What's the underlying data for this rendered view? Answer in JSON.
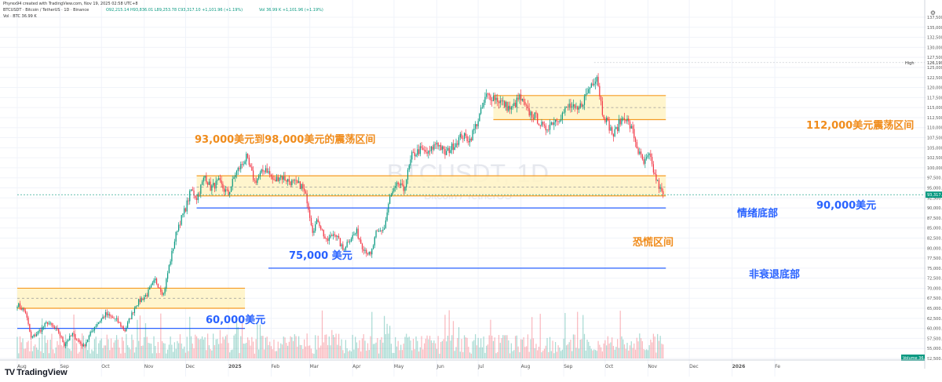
{
  "header": {
    "created_by": "Phyrex94 created with TradingView.com, Nov 19, 2025 02:58 UTC+8",
    "symbol_line": "BTCUSDT · Bitcoin / TetherUS · 1D · Binance",
    "ohlc_line": "O92,215.14 H93,836.01 L89,253.78 C93,317.10 +1,101.96 (+1.19%)",
    "vol_line": "Vol 36.99 K +1,101.96 (+1.19%)",
    "vol_sub": "Vol · BTC  36.99 K"
  },
  "watermark": {
    "symbol": "BTCUSDT, 1D",
    "name": "Bitcoin / TetherUS"
  },
  "price_labels": {
    "high_tag": "High",
    "high_value": "126,199.63",
    "last_value": "93,317.10",
    "volume_tag": "Volume",
    "volume_value": "36.99 K"
  },
  "brand": {
    "name": "TradingView",
    "logo": "TV"
  },
  "controls": {
    "settings": "⚙"
  },
  "colors": {
    "up": "#089981",
    "down": "#f23645",
    "zone_fill": "#fff3c4",
    "zone_line": "#f59b24",
    "blue_line": "#2962ff",
    "orange_text": "#f08c1c",
    "blue_text": "#2962ff"
  },
  "annotations": [
    {
      "text": "93,000美元到98,000美元的震荡区间",
      "color": "orange"
    },
    {
      "text": "112,000美元震荡区间",
      "color": "orange"
    },
    {
      "text": "90,000美元",
      "color": "blue"
    },
    {
      "text": "情绪底部",
      "color": "blue"
    },
    {
      "text": "恐慌区间",
      "color": "orange"
    },
    {
      "text": "75,000 美元",
      "color": "blue"
    },
    {
      "text": "非衰退底部",
      "color": "blue"
    },
    {
      "text": "60,000美元",
      "color": "blue"
    }
  ],
  "chart_data": {
    "type": "candlestick",
    "title": "BTCUSDT, 1D",
    "ylim": [
      52500,
      137500
    ],
    "y_ticks": [
      "137,500.00",
      "135,000.00",
      "132,500.00",
      "130,000.00",
      "127,500.00",
      "125,000.00",
      "122,500.00",
      "120,000.00",
      "117,500.00",
      "115,000.00",
      "112,500.00",
      "110,000.00",
      "107,500.00",
      "105,000.00",
      "102,500.00",
      "100,000.00",
      "97,500.00",
      "95,000.00",
      "92,500.00",
      "90,000.00",
      "87,500.00",
      "85,000.00",
      "82,500.00",
      "80,000.00",
      "77,500.00",
      "75,000.00",
      "72,500.00",
      "70,000.00",
      "67,500.00",
      "65,000.00",
      "62,500.00",
      "60,000.00",
      "57,500.00",
      "55,000.00",
      "52,500.00"
    ],
    "x_ticks": [
      "Aug",
      "Sep",
      "Oct",
      "Nov",
      "Dec",
      "2025",
      "Feb",
      "Mar",
      "Apr",
      "May",
      "Jun",
      "Jul",
      "Aug",
      "Sep",
      "Oct",
      "Nov",
      "Dec",
      "2026",
      "Fe"
    ],
    "x_range_days": [
      0,
      570
    ],
    "x_ticks_day": [
      0,
      31,
      61,
      92,
      122,
      153,
      184,
      212,
      243,
      273,
      304,
      334,
      365,
      396,
      426,
      457,
      487,
      518,
      549
    ],
    "price_anchors": [
      [
        0,
        66000
      ],
      [
        6,
        64000
      ],
      [
        10,
        57500
      ],
      [
        15,
        59000
      ],
      [
        22,
        61500
      ],
      [
        30,
        59000
      ],
      [
        34,
        56000
      ],
      [
        40,
        58500
      ],
      [
        48,
        55500
      ],
      [
        56,
        60500
      ],
      [
        64,
        63500
      ],
      [
        72,
        62000
      ],
      [
        78,
        59500
      ],
      [
        86,
        66000
      ],
      [
        94,
        68500
      ],
      [
        100,
        72000
      ],
      [
        106,
        68500
      ],
      [
        110,
        75500
      ],
      [
        116,
        85000
      ],
      [
        122,
        90000
      ],
      [
        126,
        94500
      ],
      [
        130,
        92500
      ],
      [
        136,
        98000
      ],
      [
        140,
        95000
      ],
      [
        146,
        96500
      ],
      [
        150,
        94500
      ],
      [
        153,
        93500
      ],
      [
        158,
        98500
      ],
      [
        166,
        102500
      ],
      [
        172,
        96500
      ],
      [
        180,
        100000
      ],
      [
        186,
        96500
      ],
      [
        190,
        98000
      ],
      [
        198,
        96500
      ],
      [
        206,
        95500
      ],
      [
        210,
        92000
      ],
      [
        214,
        84500
      ],
      [
        218,
        87000
      ],
      [
        224,
        81500
      ],
      [
        230,
        84000
      ],
      [
        236,
        79500
      ],
      [
        240,
        82000
      ],
      [
        246,
        84000
      ],
      [
        250,
        80500
      ],
      [
        256,
        78000
      ],
      [
        260,
        83500
      ],
      [
        266,
        85000
      ],
      [
        270,
        92500
      ],
      [
        276,
        96000
      ],
      [
        280,
        94500
      ],
      [
        286,
        103000
      ],
      [
        292,
        104500
      ],
      [
        298,
        103500
      ],
      [
        304,
        106500
      ],
      [
        310,
        103500
      ],
      [
        316,
        105500
      ],
      [
        322,
        108000
      ],
      [
        328,
        107000
      ],
      [
        334,
        112000
      ],
      [
        340,
        118000
      ],
      [
        346,
        117500
      ],
      [
        352,
        116000
      ],
      [
        358,
        114500
      ],
      [
        364,
        117500
      ],
      [
        370,
        114000
      ],
      [
        376,
        112500
      ],
      [
        382,
        109500
      ],
      [
        388,
        111500
      ],
      [
        394,
        113000
      ],
      [
        400,
        115500
      ],
      [
        406,
        114000
      ],
      [
        412,
        118000
      ],
      [
        416,
        121000
      ],
      [
        420,
        123000
      ],
      [
        424,
        114000
      ],
      [
        428,
        111000
      ],
      [
        432,
        108000
      ],
      [
        436,
        111000
      ],
      [
        440,
        113000
      ],
      [
        446,
        109000
      ],
      [
        450,
        104000
      ],
      [
        454,
        101000
      ],
      [
        458,
        103000
      ],
      [
        462,
        98000
      ],
      [
        466,
        94500
      ],
      [
        468,
        93300
      ]
    ],
    "volume_note": "daily volume bars along the bottom of the chart",
    "horizontal_levels": [
      {
        "price": 90000,
        "label": "90,000美元",
        "day_from": 130,
        "day_to": 470
      },
      {
        "price": 75000,
        "label": "75,000 美元",
        "day_from": 182,
        "day_to": 470
      },
      {
        "price": 60000,
        "label": "60,000美元",
        "day_from": 0,
        "day_to": 165
      }
    ],
    "zones": [
      {
        "low": 93000,
        "high": 98000,
        "mid": 95200,
        "day_from": 130,
        "day_to": 470
      },
      {
        "low": 112000,
        "high": 118000,
        "mid": 115000,
        "day_from": 345,
        "day_to": 470
      },
      {
        "low": 65000,
        "high": 70000,
        "mid": 67500,
        "day_from": 0,
        "day_to": 165
      }
    ]
  }
}
